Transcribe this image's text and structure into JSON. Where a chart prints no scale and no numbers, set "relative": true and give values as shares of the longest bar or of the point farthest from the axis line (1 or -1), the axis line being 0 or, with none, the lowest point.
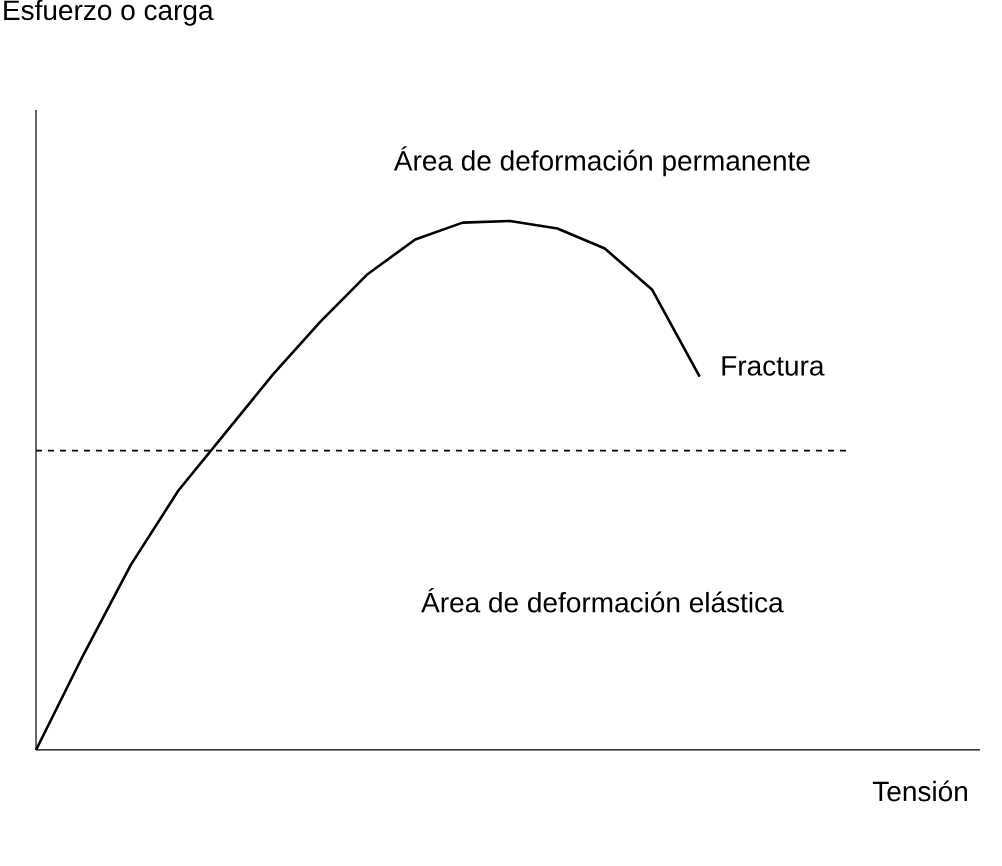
{
  "chart_data": {
    "type": "line",
    "relative": true,
    "marker": "none",
    "line_style": "solid",
    "categories": [
      null,
      null,
      null,
      null,
      null,
      null,
      null,
      null,
      null,
      null,
      null,
      null,
      null,
      null,
      null
    ],
    "series": [
      {
        "color": "#000000",
        "values": [
          0,
          0.18,
          0.35,
          0.49,
          0.6,
          0.71,
          0.81,
          0.9,
          0.965,
          0.997,
          1,
          0.986,
          0.948,
          0.87,
          0.706
        ]
      }
    ],
    "ref_lines": [
      {
        "axis": "y",
        "value": 0.566,
        "line_style": "dashed",
        "color": "#000000"
      }
    ],
    "annotations": [
      "Área de deformación permanente",
      "Fractura",
      "Área de deformación elástica",
      "Esfuerzo o carga",
      "Tensión"
    ]
  }
}
